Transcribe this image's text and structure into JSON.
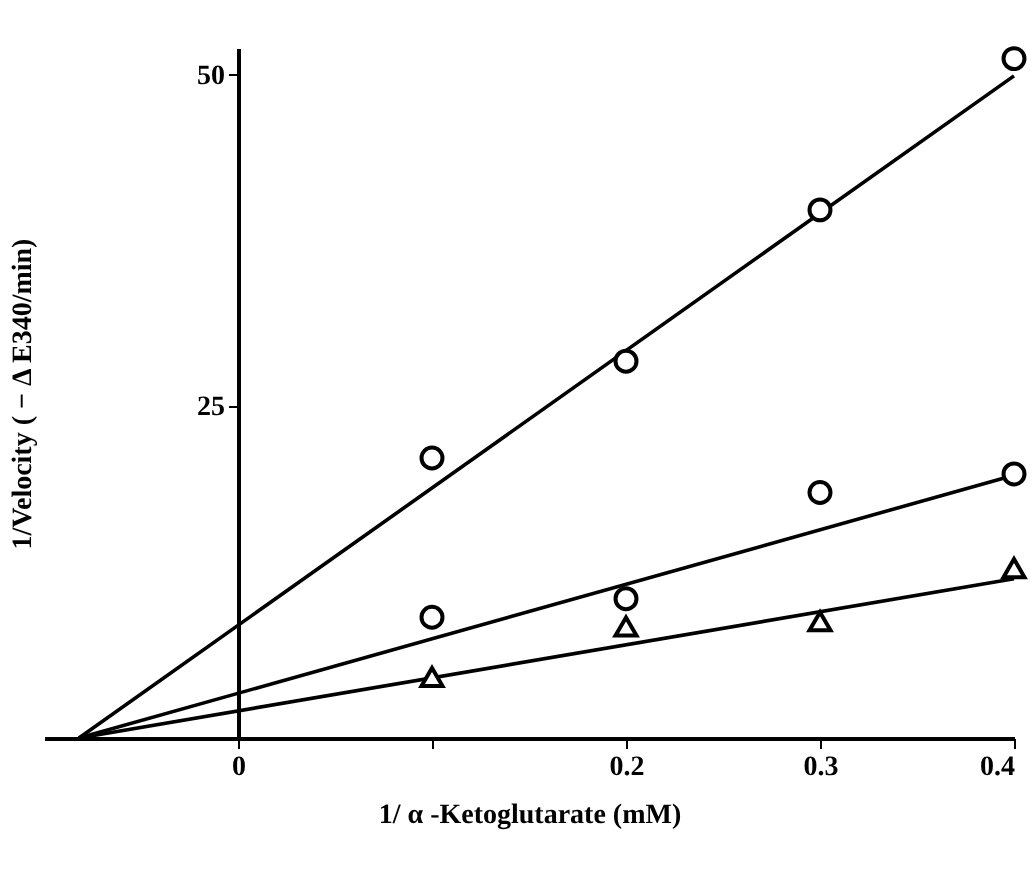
{
  "chart_data": {
    "type": "scatter",
    "xlabel": "1/ α -Ketoglutarate (mM)",
    "ylabel": "1/Velocity ( − Δ E340/min)",
    "xlim": [
      -0.1,
      0.4
    ],
    "ylim": [
      0,
      52
    ],
    "xticks": [
      0,
      {
        "value": 0.1,
        "label": null
      },
      0.2,
      0.3,
      0.4
    ],
    "yticks": [
      25,
      50
    ],
    "grid": false,
    "series": [
      {
        "marker": "circle",
        "color": "#000000",
        "x": [
          0.1,
          0.2,
          0.3,
          0.4
        ],
        "values": [
          21.1,
          28.4,
          39.8,
          51.2
        ]
      },
      {
        "marker": "circle",
        "color": "#000000",
        "x": [
          0.1,
          0.2,
          0.3,
          0.4
        ],
        "values": [
          9.1,
          10.5,
          18.5,
          19.9
        ]
      },
      {
        "marker": "triangle",
        "color": "#000000",
        "x": [
          0.1,
          0.2,
          0.3,
          0.4
        ],
        "values": [
          4.6,
          8.4,
          8.8,
          12.8
        ]
      },
      {
        "type": "line",
        "line_style": "solid",
        "color": "#000000",
        "x": [
          -0.082,
          0.4
        ],
        "values": [
          0,
          49.9
        ]
      },
      {
        "type": "line",
        "line_style": "solid",
        "color": "#000000",
        "x": [
          -0.082,
          0.4
        ],
        "values": [
          0,
          19.8
        ]
      },
      {
        "type": "line",
        "line_style": "solid",
        "color": "#000000",
        "x": [
          -0.082,
          0.4
        ],
        "values": [
          0,
          12.0
        ]
      }
    ]
  }
}
